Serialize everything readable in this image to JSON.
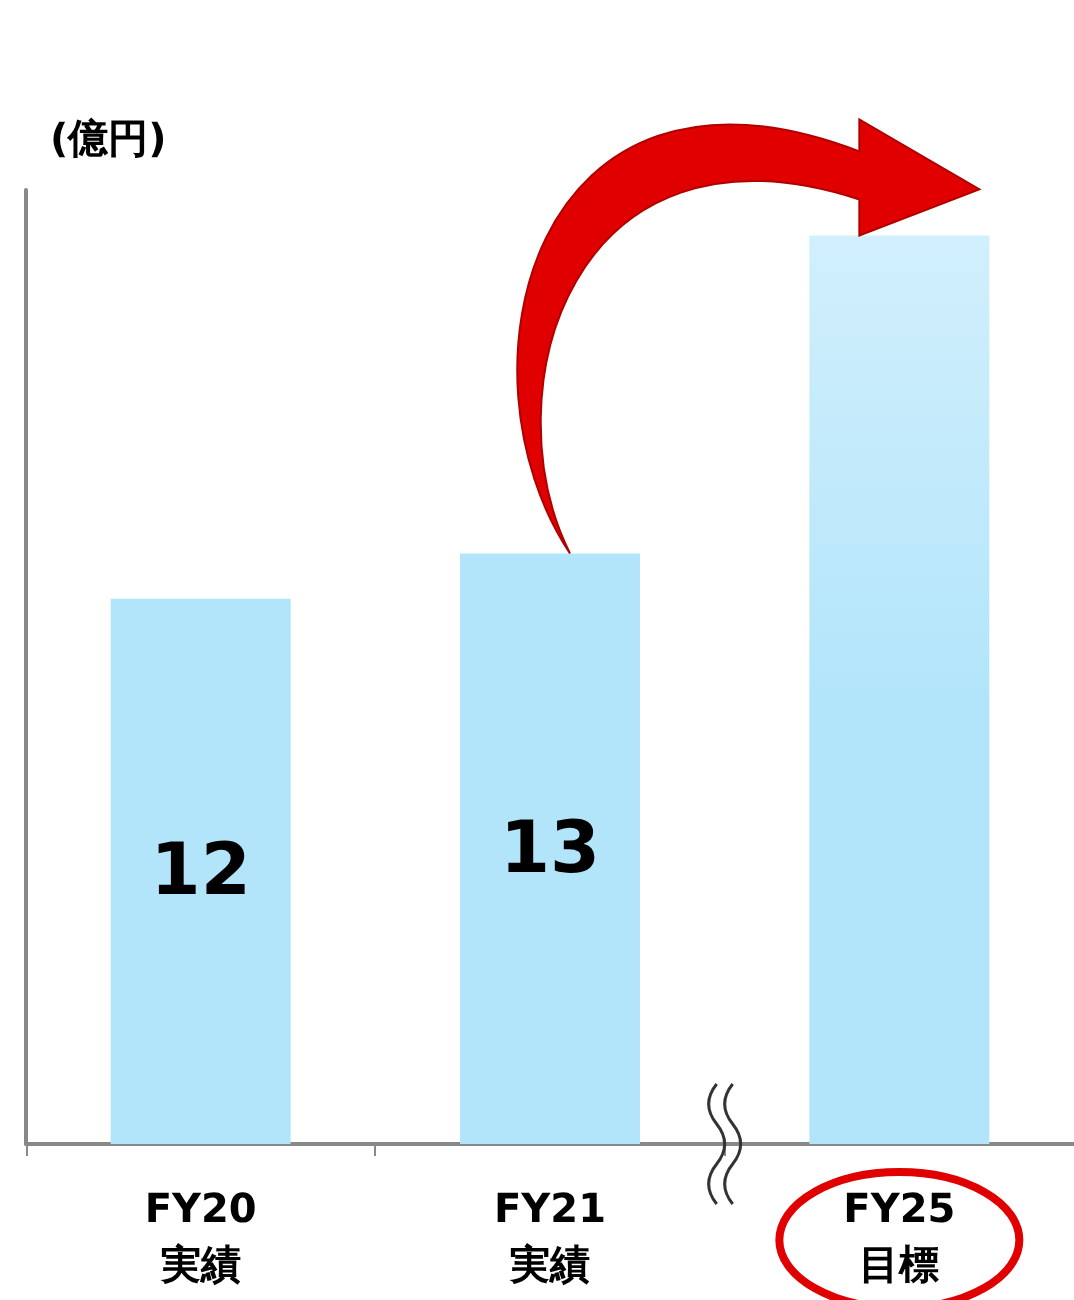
{
  "chart_data": {
    "type": "bar",
    "ylabel": "(億円)",
    "categories": [
      "FY20\n実績",
      "FY21\n実績",
      "FY25\n目標"
    ],
    "values": [
      12,
      13,
      20
    ],
    "value_labels": [
      "12",
      "13",
      null
    ],
    "colors": [
      "#b3e5fa",
      "#b3e5fa",
      "#b3e5fa"
    ],
    "ylim": [
      0,
      21
    ],
    "grid": false
  }
}
